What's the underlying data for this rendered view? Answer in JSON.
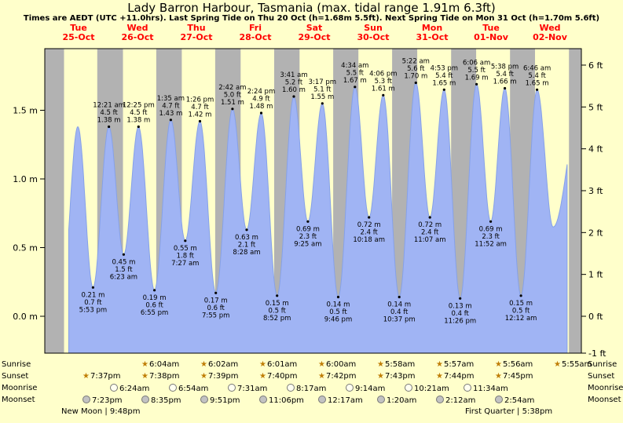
{
  "title": "Lady Barron Harbour, Tasmania (max. tidal range 1.91m 6.3ft)",
  "subtitle": "Times are AEDT (UTC +11.0hrs). Last Spring Tide on Thu 20 Oct (h=1.68m 5.5ft). Next Spring Tide on Mon 31 Oct (h=1.70m 5.6ft)",
  "days": [
    {
      "dow": "Tue",
      "date": "25-Oct"
    },
    {
      "dow": "Wed",
      "date": "26-Oct"
    },
    {
      "dow": "Thu",
      "date": "27-Oct"
    },
    {
      "dow": "Fri",
      "date": "28-Oct"
    },
    {
      "dow": "Sat",
      "date": "29-Oct"
    },
    {
      "dow": "Sun",
      "date": "30-Oct"
    },
    {
      "dow": "Mon",
      "date": "31-Oct"
    },
    {
      "dow": "Tue",
      "date": "01-Nov"
    },
    {
      "dow": "Wed",
      "date": "02-Nov"
    }
  ],
  "y_axis": {
    "left": [
      {
        "v": 0,
        "label": "0.0 m"
      },
      {
        "v": 0.5,
        "label": "0.5 m"
      },
      {
        "v": 1,
        "label": "1.0 m"
      },
      {
        "v": 1.5,
        "label": "1.5 m"
      }
    ],
    "right": [
      {
        "v": -1,
        "label": "-1 ft"
      },
      {
        "v": 0,
        "label": "0 ft"
      },
      {
        "v": 1,
        "label": "1 ft"
      },
      {
        "v": 2,
        "label": "2 ft"
      },
      {
        "v": 3,
        "label": "3 ft"
      },
      {
        "v": 4,
        "label": "4 ft"
      },
      {
        "v": 5,
        "label": "5 ft"
      },
      {
        "v": 6,
        "label": "6 ft"
      }
    ]
  },
  "colors": {
    "background": "#ffffcb",
    "night_band": "#b2b2b2",
    "tide_fill": "#a0b4f4",
    "tide_stroke": "#86a1e8",
    "day_label_red": "#ff0000"
  },
  "chart_data": {
    "type": "area",
    "title": "Lady Barron Harbour, Tasmania tide heights",
    "x_unit": "hours from Tue 25-Oct 00:00 AEDT",
    "ylabel_left": "m",
    "ylabel_right": "ft",
    "ylim_m": [
      -0.27,
      1.95
    ],
    "grid": false,
    "extremes": [
      {
        "kind": "low",
        "t": 17.883,
        "m": 0.21,
        "ft": 0.7,
        "time": "5:53 pm"
      },
      {
        "kind": "high",
        "t": 24.35,
        "m": 1.38,
        "ft": 4.5,
        "time": "12:21 am"
      },
      {
        "kind": "low",
        "t": 30.383,
        "m": 0.45,
        "ft": 1.5,
        "time": "6:23 am"
      },
      {
        "kind": "high",
        "t": 36.417,
        "m": 1.38,
        "ft": 4.5,
        "time": "12:25 pm"
      },
      {
        "kind": "low",
        "t": 42.917,
        "m": 0.19,
        "ft": 0.6,
        "time": "6:55 pm"
      },
      {
        "kind": "high",
        "t": 49.583,
        "m": 1.43,
        "ft": 4.7,
        "time": "1:35 am"
      },
      {
        "kind": "low",
        "t": 55.45,
        "m": 0.55,
        "ft": 1.8,
        "time": "7:27 am"
      },
      {
        "kind": "high",
        "t": 61.433,
        "m": 1.42,
        "ft": 4.7,
        "time": "1:26 pm"
      },
      {
        "kind": "low",
        "t": 67.917,
        "m": 0.17,
        "ft": 0.6,
        "time": "7:55 pm"
      },
      {
        "kind": "high",
        "t": 74.7,
        "m": 1.51,
        "ft": 5.0,
        "time": "2:42 am"
      },
      {
        "kind": "low",
        "t": 80.467,
        "m": 0.63,
        "ft": 2.1,
        "time": "8:28 am"
      },
      {
        "kind": "high",
        "t": 86.4,
        "m": 1.48,
        "ft": 4.9,
        "time": "2:24 pm"
      },
      {
        "kind": "low",
        "t": 92.867,
        "m": 0.15,
        "ft": 0.5,
        "time": "8:52 pm"
      },
      {
        "kind": "high",
        "t": 99.683,
        "m": 1.6,
        "ft": 5.2,
        "time": "3:41 am"
      },
      {
        "kind": "low",
        "t": 105.417,
        "m": 0.69,
        "ft": 2.3,
        "time": "9:25 am"
      },
      {
        "kind": "high",
        "t": 111.283,
        "m": 1.55,
        "ft": 5.1,
        "time": "3:17 pm"
      },
      {
        "kind": "low",
        "t": 117.767,
        "m": 0.14,
        "ft": 0.5,
        "time": "9:46 pm"
      },
      {
        "kind": "high",
        "t": 124.567,
        "m": 1.67,
        "ft": 5.5,
        "time": "4:34 am"
      },
      {
        "kind": "low",
        "t": 130.3,
        "m": 0.72,
        "ft": 2.4,
        "time": "10:18 am"
      },
      {
        "kind": "high",
        "t": 136.1,
        "m": 1.61,
        "ft": 5.3,
        "time": "4:06 pm"
      },
      {
        "kind": "low",
        "t": 142.617,
        "m": 0.14,
        "ft": 0.4,
        "time": "10:37 pm"
      },
      {
        "kind": "high",
        "t": 149.367,
        "m": 1.7,
        "ft": 5.6,
        "time": "5:22 am"
      },
      {
        "kind": "low",
        "t": 155.117,
        "m": 0.72,
        "ft": 2.4,
        "time": "11:07 am"
      },
      {
        "kind": "high",
        "t": 160.883,
        "m": 1.65,
        "ft": 5.4,
        "time": "4:53 pm"
      },
      {
        "kind": "low",
        "t": 167.433,
        "m": 0.13,
        "ft": 0.4,
        "time": "11:26 pm"
      },
      {
        "kind": "high",
        "t": 174.1,
        "m": 1.69,
        "ft": 5.5,
        "time": "6:06 am"
      },
      {
        "kind": "low",
        "t": 179.867,
        "m": 0.69,
        "ft": 2.3,
        "time": "11:52 am"
      },
      {
        "kind": "high",
        "t": 185.633,
        "m": 1.66,
        "ft": 5.4,
        "time": "5:38 pm"
      },
      {
        "kind": "low",
        "t": 192.2,
        "m": 0.15,
        "ft": 0.5,
        "time": "12:12 am"
      },
      {
        "kind": "high",
        "t": 198.767,
        "m": 1.65,
        "ft": 5.4,
        "time": "6:46 am"
      }
    ],
    "padding_points": [
      {
        "t": 5.4,
        "m": 0.2
      },
      {
        "t": 11.7,
        "m": 1.38
      },
      {
        "t": 205.3,
        "m": 0.65
      },
      {
        "t": 217.0,
        "m": 1.6
      }
    ],
    "draw_range_hours": [
      8,
      211
    ]
  },
  "almanac": {
    "rows": [
      {
        "id": "sunrise",
        "label": "Sunrise",
        "icon": "sun",
        "first_day_index": 1,
        "times": [
          "6:04am",
          "6:02am",
          "6:01am",
          "6:00am",
          "5:58am",
          "5:57am",
          "5:56am",
          "5:55am"
        ]
      },
      {
        "id": "sunset",
        "label": "Sunset",
        "icon": "sun",
        "first_day_index": 0,
        "times": [
          "7:37pm",
          "7:38pm",
          "7:39pm",
          "7:40pm",
          "7:42pm",
          "7:43pm",
          "7:44pm",
          "7:45pm"
        ]
      },
      {
        "id": "moonrise",
        "label": "Moonrise",
        "icon": "moon-light",
        "first_day_index": 0,
        "times": [
          "6:24am",
          "6:54am",
          "7:31am",
          "8:17am",
          "9:14am",
          "10:21am",
          "11:34am"
        ]
      },
      {
        "id": "moonset",
        "label": "Moonset",
        "icon": "moon-dark",
        "first_day_index": 0,
        "times": [
          "7:23pm",
          "8:35pm",
          "9:51pm",
          "11:06pm",
          "12:17am",
          "1:20am",
          "2:12am",
          "2:54am"
        ]
      }
    ],
    "phases": {
      "left": "New Moon | 9:48pm",
      "right": "First Quarter | 5:38pm"
    }
  }
}
